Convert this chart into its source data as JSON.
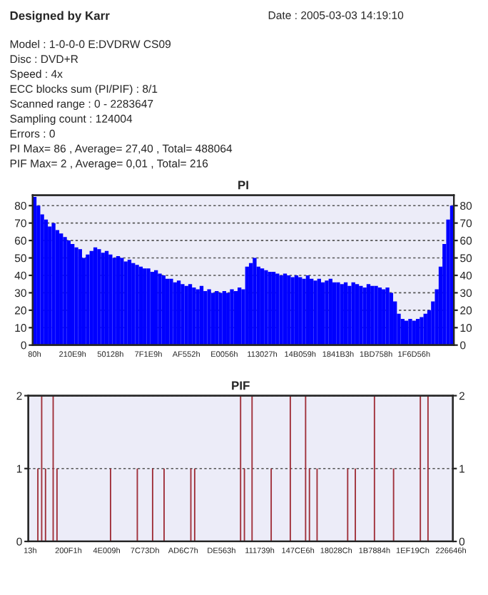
{
  "chart_data": [
    {
      "type": "other",
      "title": "Designed by Karr",
      "annotations": [
        "Date : 2005-03-03 14:19:10",
        "Model : 1-0-0-0 E:DVDRW CS09",
        "Disc : DVD+R",
        "Speed : 4x",
        "ECC blocks sum (PI/PIF) : 8/1",
        "Scanned range : 0 - 2283647",
        "Sampling count : 124004",
        "Errors : 0",
        "PI Max= 86 , Average= 27,40 , Total= 488064",
        "PIF Max= 2 , Average= 0,01 , Total= 216"
      ]
    },
    {
      "type": "bar",
      "title": "PI",
      "color": "#0000ff",
      "categories": [
        "80h",
        null,
        null,
        null,
        null,
        null,
        null,
        null,
        null,
        null,
        "210E9h",
        null,
        null,
        null,
        null,
        null,
        null,
        null,
        null,
        null,
        "50128h",
        null,
        null,
        null,
        null,
        null,
        null,
        null,
        null,
        null,
        "7F1E9h",
        null,
        null,
        null,
        null,
        null,
        null,
        null,
        null,
        null,
        "AF552h",
        null,
        null,
        null,
        null,
        null,
        null,
        null,
        null,
        null,
        "E0056h",
        null,
        null,
        null,
        null,
        null,
        null,
        null,
        null,
        null,
        "113027h",
        null,
        null,
        null,
        null,
        null,
        null,
        null,
        null,
        null,
        "14B059h",
        null,
        null,
        null,
        null,
        null,
        null,
        null,
        null,
        null,
        "1841B3h",
        null,
        null,
        null,
        null,
        null,
        null,
        null,
        null,
        null,
        "1BD758h",
        null,
        null,
        null,
        null,
        null,
        null,
        null,
        null,
        null,
        "1F6D56h",
        null,
        null,
        null,
        null,
        null,
        null,
        null,
        null,
        null,
        null
      ],
      "values": [
        85,
        80,
        75,
        72,
        68,
        70,
        66,
        64,
        62,
        60,
        58,
        56,
        55,
        50,
        52,
        54,
        56,
        55,
        53,
        54,
        52,
        50,
        51,
        50,
        48,
        49,
        47,
        46,
        45,
        44,
        44,
        42,
        43,
        41,
        40,
        38,
        38,
        36,
        37,
        35,
        34,
        35,
        33,
        32,
        34,
        31,
        32,
        30,
        31,
        30,
        31,
        30,
        32,
        31,
        33,
        32,
        45,
        47,
        50,
        45,
        44,
        43,
        42,
        42,
        41,
        40,
        41,
        40,
        39,
        40,
        39,
        38,
        40,
        38,
        37,
        38,
        36,
        37,
        38,
        36,
        36,
        35,
        36,
        34,
        36,
        35,
        34,
        33,
        35,
        34,
        34,
        33,
        32,
        33,
        30,
        25,
        18,
        15,
        14,
        15,
        14,
        15,
        16,
        18,
        20,
        25,
        32,
        45,
        58,
        72,
        80
      ],
      "ylim": [
        0,
        86
      ],
      "yticks": [
        0,
        10,
        20,
        30,
        40,
        50,
        60,
        70,
        80
      ],
      "y2lim": [
        0,
        86
      ],
      "y2ticks": [
        0,
        10,
        20,
        30,
        40,
        50,
        60,
        70,
        80
      ],
      "grid": "y"
    },
    {
      "type": "bar",
      "title": "PIF",
      "color": "#a0303a",
      "categories": [
        "13h",
        null,
        null,
        null,
        null,
        null,
        null,
        null,
        null,
        null,
        "200F1h",
        null,
        null,
        null,
        null,
        null,
        null,
        null,
        null,
        null,
        "4E009h",
        null,
        null,
        null,
        null,
        null,
        null,
        null,
        null,
        null,
        "7C73Dh",
        null,
        null,
        null,
        null,
        null,
        null,
        null,
        null,
        null,
        "AD6C7h",
        null,
        null,
        null,
        null,
        null,
        null,
        null,
        null,
        null,
        "DE563h",
        null,
        null,
        null,
        null,
        null,
        null,
        null,
        null,
        null,
        "111739h",
        null,
        null,
        null,
        null,
        null,
        null,
        null,
        null,
        null,
        "147CE6h",
        null,
        null,
        null,
        null,
        null,
        null,
        null,
        null,
        null,
        "18028Ch",
        null,
        null,
        null,
        null,
        null,
        null,
        null,
        null,
        null,
        "1B7884h",
        null,
        null,
        null,
        null,
        null,
        null,
        null,
        null,
        null,
        "1EF19Ch",
        null,
        null,
        null,
        null,
        null,
        null,
        null,
        null,
        null,
        "226646h"
      ],
      "values": [
        0,
        0,
        1,
        2,
        1,
        0,
        2,
        1,
        0,
        0,
        0,
        0,
        0,
        0,
        0,
        0,
        0,
        0,
        0,
        0,
        0,
        1,
        0,
        0,
        0,
        0,
        0,
        0,
        1,
        0,
        0,
        0,
        1,
        0,
        0,
        1,
        0,
        0,
        0,
        0,
        0,
        0,
        1,
        1,
        0,
        0,
        0,
        0,
        0,
        0,
        0,
        0,
        0,
        0,
        0,
        2,
        1,
        0,
        2,
        0,
        0,
        0,
        0,
        1,
        0,
        0,
        0,
        0,
        2,
        0,
        0,
        0,
        2,
        1,
        0,
        1,
        0,
        0,
        0,
        0,
        0,
        0,
        0,
        1,
        0,
        1,
        0,
        0,
        0,
        0,
        2,
        0,
        0,
        0,
        0,
        1,
        0,
        0,
        0,
        0,
        0,
        0,
        2,
        0,
        2,
        0,
        0,
        0,
        0,
        0,
        0
      ],
      "ylim": [
        0,
        2
      ],
      "yticks": [
        0,
        1,
        2
      ],
      "y2lim": [
        0,
        2
      ],
      "y2ticks": [
        0,
        1,
        2
      ],
      "grid": "y"
    }
  ]
}
